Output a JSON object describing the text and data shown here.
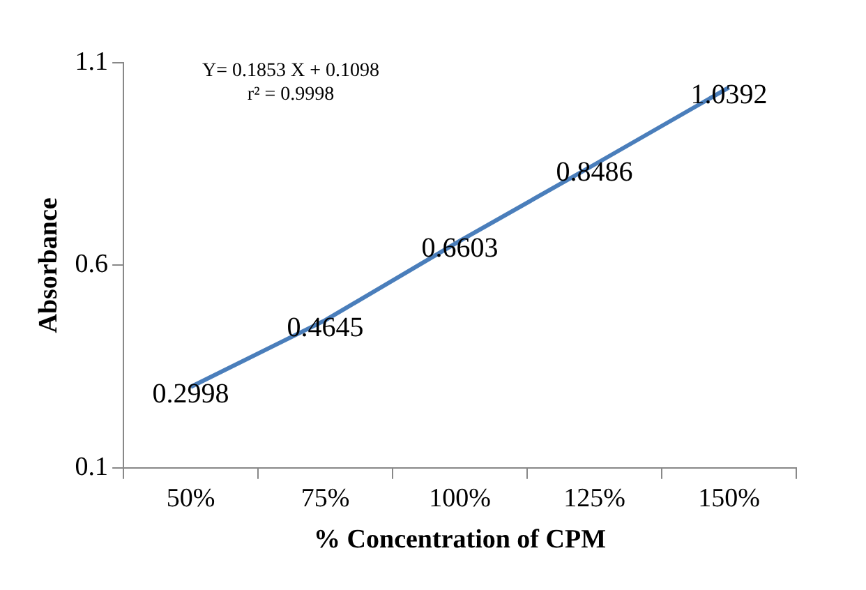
{
  "chart_data": {
    "type": "line",
    "xlabel": "% Concentration of CPM",
    "ylabel": "Absorbance",
    "categories": [
      "50%",
      "75%",
      "100%",
      "125%",
      "150%"
    ],
    "series": [
      {
        "color": "#4a7ebb",
        "values": [
          0.2998,
          0.4645,
          0.6603,
          0.8486,
          1.0392
        ]
      }
    ],
    "ylim": [
      0.1,
      1.1
    ],
    "yticks": [
      0.1,
      0.6,
      1.1
    ],
    "grid": false,
    "legend": false,
    "marker": "none",
    "line_style": "solid",
    "data_labels": true,
    "annotations": [
      "Y= 0.1853 X + 0.1098",
      "r² = 0.9998"
    ]
  }
}
